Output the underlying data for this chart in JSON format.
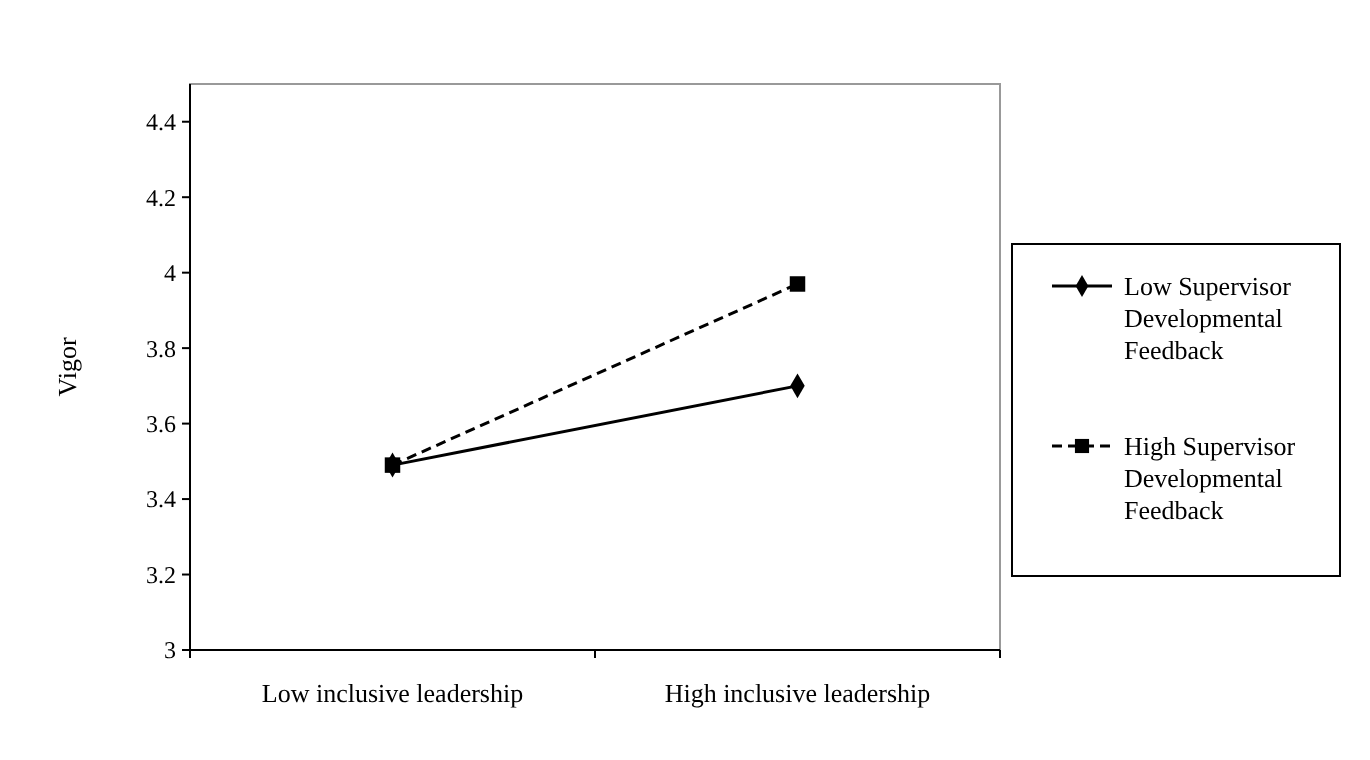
{
  "chart_data": {
    "type": "line",
    "ylabel": "Vigor",
    "categories": [
      "Low inclusive leadership",
      "High inclusive leadership"
    ],
    "series": [
      {
        "name": "Low Supervisor Developmental Feedback",
        "color": "#000000",
        "values": [
          3.49,
          3.7
        ],
        "marker": "diamond",
        "line_style": "solid"
      },
      {
        "name": "High Supervisor Developmental Feedback",
        "color": "#000000",
        "values": [
          3.49,
          3.97
        ],
        "marker": "square",
        "line_style": "dashed"
      }
    ],
    "ylim": [
      3,
      4.5
    ],
    "yticks": [
      3,
      3.2,
      3.4,
      3.6,
      3.8,
      4,
      4.2,
      4.4
    ],
    "grid": false,
    "legend": "right"
  }
}
